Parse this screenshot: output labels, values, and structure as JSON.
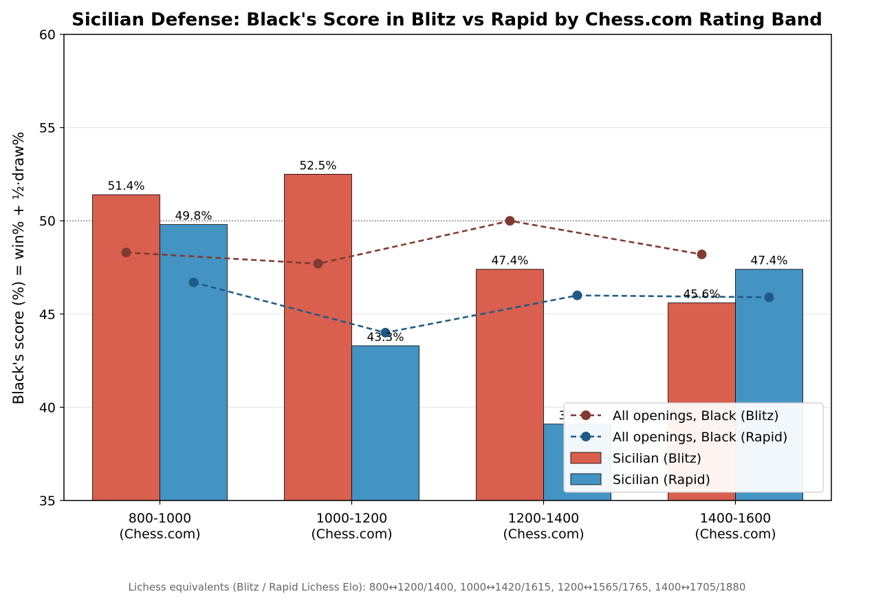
{
  "chart_data": {
    "type": "bar",
    "title": "Sicilian Defense: Black's Score in Blitz vs Rapid by Chess.com Rating Band",
    "ylabel": "Black's score (%)  =  win% + ½·draw%",
    "xlabel": "",
    "ylim": [
      35,
      60
    ],
    "yticks": [
      35,
      40,
      45,
      50,
      55,
      60
    ],
    "grid": "horizontal",
    "reference_line": 50,
    "categories": [
      [
        "800-1000",
        "(Chess.com)"
      ],
      [
        "1000-1200",
        "(Chess.com)"
      ],
      [
        "1200-1400",
        "(Chess.com)"
      ],
      [
        "1400-1600",
        "(Chess.com)"
      ]
    ],
    "bar_series": [
      {
        "name": "Sicilian (Blitz)",
        "color": "#d95f4e",
        "values": [
          51.4,
          52.5,
          47.4,
          45.6
        ],
        "labels": [
          "51.4%",
          "52.5%",
          "47.4%",
          "45.6%"
        ]
      },
      {
        "name": "Sicilian (Rapid)",
        "color": "#4393c3",
        "values": [
          49.8,
          43.3,
          39.1,
          47.4
        ],
        "labels": [
          "49.8%",
          "43.3%",
          "39.1%",
          "47.4%"
        ]
      }
    ],
    "line_series": [
      {
        "name": "All openings, Black (Blitz)",
        "color": "#7f3b32",
        "values": [
          48.3,
          47.7,
          50.0,
          48.2
        ]
      },
      {
        "name": "All openings, Black (Rapid)",
        "color": "#1f5a87",
        "values": [
          46.7,
          44.0,
          46.0,
          45.9
        ]
      }
    ],
    "legend_position": "lower-right",
    "legend": [
      "All openings, Black (Blitz)",
      "All openings, Black (Rapid)",
      "Sicilian (Blitz)",
      "Sicilian (Rapid)"
    ]
  },
  "footnote": "Lichess equivalents (Blitz / Rapid Lichess Elo): 800↔1200/1400, 1000↔1420/1615, 1200↔1565/1765, 1400↔1705/1880"
}
